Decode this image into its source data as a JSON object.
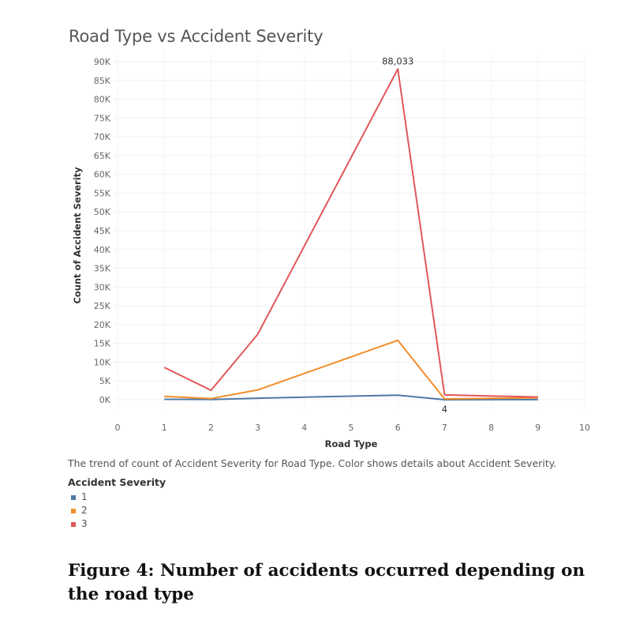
{
  "chart_data": {
    "type": "line",
    "title": "Road Type vs Accident Severity",
    "xlabel": "Road Type",
    "ylabel": "Count of Accident Severity",
    "xlim": [
      0,
      10
    ],
    "ylim": [
      0,
      90000
    ],
    "x_ticks": [
      "0",
      "1",
      "2",
      "3",
      "4",
      "5",
      "6",
      "7",
      "8",
      "9",
      "10"
    ],
    "y_ticks": [
      "0K",
      "5K",
      "10K",
      "15K",
      "20K",
      "25K",
      "30K",
      "35K",
      "40K",
      "45K",
      "50K",
      "55K",
      "60K",
      "65K",
      "70K",
      "75K",
      "80K",
      "85K",
      "90K"
    ],
    "series": [
      {
        "name": "1",
        "color": "#4e79a7",
        "x": [
          1,
          2,
          3,
          6,
          7,
          9
        ],
        "y": [
          100,
          60,
          400,
          1200,
          4,
          30
        ]
      },
      {
        "name": "2",
        "color": "#f28e2b",
        "x": [
          1,
          2,
          3,
          6,
          7,
          9
        ],
        "y": [
          900,
          300,
          2600,
          15800,
          200,
          500
        ]
      },
      {
        "name": "3",
        "color": "#e15759",
        "x": [
          1,
          2,
          3,
          6,
          7,
          9
        ],
        "y": [
          8600,
          2500,
          17400,
          88033,
          1300,
          700
        ]
      }
    ],
    "annotations": [
      {
        "series": "3",
        "x": 6,
        "y": 88033,
        "text": "88,033"
      },
      {
        "series": "1",
        "x": 7,
        "y": 4,
        "text": "4"
      }
    ],
    "grid": true,
    "legend_placement": "bottom-left"
  },
  "caption": "The trend of count of Accident Severity for Road Type.  Color shows details about Accident Severity.",
  "legend": {
    "title": "Accident Severity",
    "items": [
      {
        "label": "1",
        "color": "#4e79a7"
      },
      {
        "label": "2",
        "color": "#f28e2b"
      },
      {
        "label": "3",
        "color": "#e15759"
      }
    ]
  },
  "figure_caption": "Figure 4:  Number of accidents occurred depending on the road type"
}
